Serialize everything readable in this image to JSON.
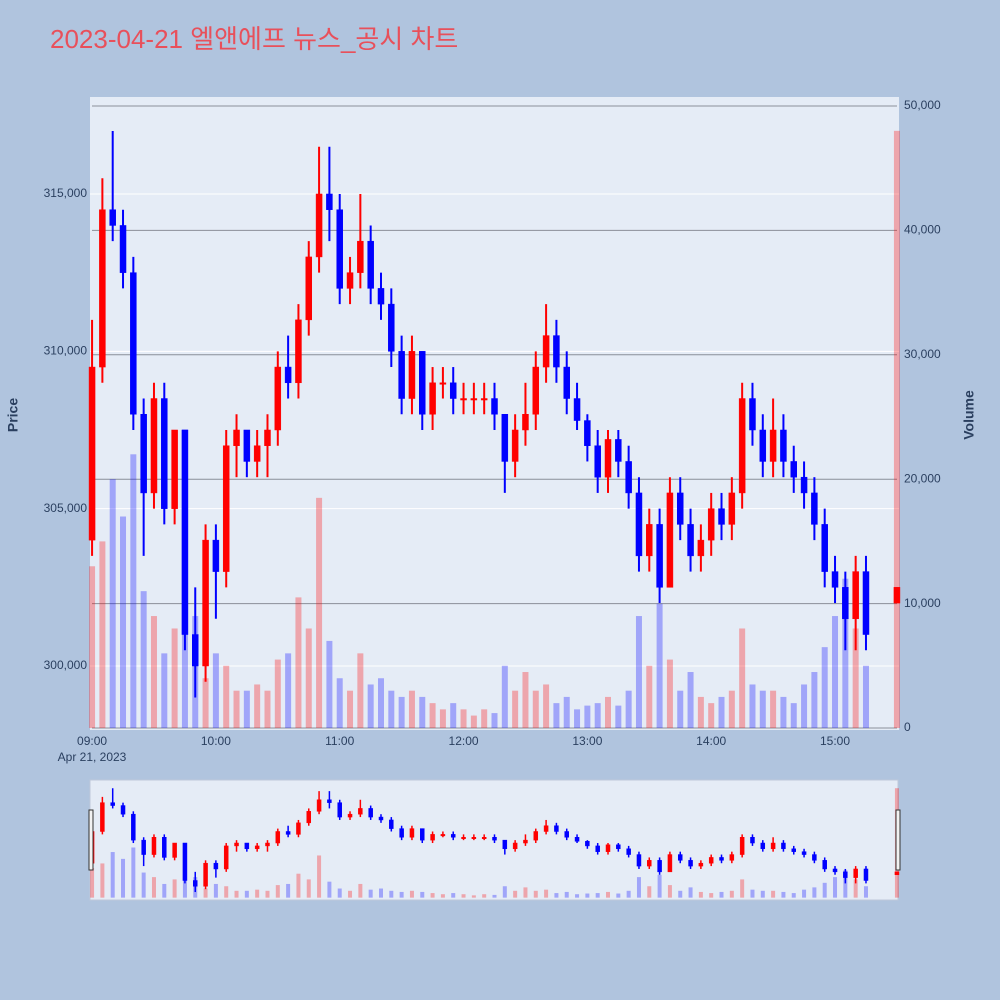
{
  "chart_data": {
    "type": "candlestick",
    "title": "2023-04-21 엘앤에프 뉴스_공시 차트",
    "y_label": "Price",
    "y2_label": "Volume",
    "x_date_label": "Apr 21, 2023",
    "increasing_color": "#ff0000",
    "decreasing_color": "#0000ff",
    "x": [
      "2023-04-21 09:00",
      "2023-04-21 09:05",
      "2023-04-21 09:10",
      "2023-04-21 09:15",
      "2023-04-21 09:20",
      "2023-04-21 09:25",
      "2023-04-21 09:30",
      "2023-04-21 09:35",
      "2023-04-21 09:40",
      "2023-04-21 09:45",
      "2023-04-21 09:50",
      "2023-04-21 09:55",
      "2023-04-21 10:00",
      "2023-04-21 10:05",
      "2023-04-21 10:10",
      "2023-04-21 10:15",
      "2023-04-21 10:20",
      "2023-04-21 10:25",
      "2023-04-21 10:30",
      "2023-04-21 10:35",
      "2023-04-21 10:40",
      "2023-04-21 10:45",
      "2023-04-21 10:50",
      "2023-04-21 10:55",
      "2023-04-21 11:00",
      "2023-04-21 11:05",
      "2023-04-21 11:10",
      "2023-04-21 11:15",
      "2023-04-21 11:20",
      "2023-04-21 11:25",
      "2023-04-21 11:30",
      "2023-04-21 11:35",
      "2023-04-21 11:40",
      "2023-04-21 11:45",
      "2023-04-21 11:50",
      "2023-04-21 11:55",
      "2023-04-21 12:00",
      "2023-04-21 12:05",
      "2023-04-21 12:10",
      "2023-04-21 12:15",
      "2023-04-21 12:20",
      "2023-04-21 12:25",
      "2023-04-21 12:30",
      "2023-04-21 12:35",
      "2023-04-21 12:40",
      "2023-04-21 12:45",
      "2023-04-21 12:50",
      "2023-04-21 12:55",
      "2023-04-21 13:00",
      "2023-04-21 13:05",
      "2023-04-21 13:10",
      "2023-04-21 13:15",
      "2023-04-21 13:20",
      "2023-04-21 13:25",
      "2023-04-21 13:30",
      "2023-04-21 13:35",
      "2023-04-21 13:40",
      "2023-04-21 13:45",
      "2023-04-21 13:50",
      "2023-04-21 13:55",
      "2023-04-21 14:00",
      "2023-04-21 14:05",
      "2023-04-21 14:10",
      "2023-04-21 14:15",
      "2023-04-21 14:20",
      "2023-04-21 14:25",
      "2023-04-21 14:30",
      "2023-04-21 14:35",
      "2023-04-21 14:40",
      "2023-04-21 14:45",
      "2023-04-21 14:50",
      "2023-04-21 14:55",
      "2023-04-21 15:00",
      "2023-04-21 15:05",
      "2023-04-21 15:10",
      "2023-04-21 15:15",
      "2023-04-21 15:30"
    ],
    "open": [
      304000,
      309500,
      314500,
      314000,
      312500,
      308000,
      305500,
      308500,
      305000,
      307500,
      301000,
      300000,
      304000,
      303000,
      307000,
      307500,
      306500,
      307000,
      307500,
      309500,
      309000,
      311000,
      313000,
      315000,
      314500,
      312000,
      312500,
      313500,
      312000,
      311500,
      310000,
      308500,
      310000,
      308000,
      309000,
      309000,
      308500,
      308500,
      308500,
      308500,
      308000,
      306500,
      307500,
      308000,
      309500,
      310500,
      309500,
      308500,
      307800,
      307000,
      306000,
      307200,
      306500,
      305500,
      303500,
      304500,
      302500,
      305500,
      304500,
      303500,
      304000,
      305000,
      304500,
      305500,
      308500,
      307500,
      306500,
      307500,
      306500,
      306000,
      305500,
      304500,
      303000,
      302500,
      301500,
      303000,
      302000
    ],
    "high": [
      311000,
      315500,
      317000,
      314500,
      313000,
      308500,
      309000,
      309000,
      307500,
      307500,
      302500,
      304500,
      304500,
      307500,
      308000,
      307500,
      307500,
      308000,
      310000,
      310500,
      311500,
      313500,
      316500,
      316500,
      315000,
      313000,
      315000,
      314000,
      312500,
      312000,
      310500,
      310500,
      310000,
      309500,
      309500,
      309500,
      309000,
      309000,
      309000,
      309000,
      308000,
      308000,
      309000,
      310000,
      311500,
      311000,
      310000,
      309000,
      308000,
      307500,
      307500,
      307500,
      307000,
      306000,
      305000,
      305000,
      306000,
      306000,
      305000,
      304500,
      305500,
      305500,
      306000,
      309000,
      309000,
      308000,
      308500,
      308000,
      307000,
      306500,
      306000,
      305000,
      303500,
      303000,
      303500,
      303500,
      302500
    ],
    "low": [
      303500,
      309000,
      313500,
      312000,
      307500,
      303500,
      305000,
      304500,
      304500,
      300500,
      299000,
      299500,
      301500,
      302500,
      306000,
      306000,
      306000,
      306000,
      307000,
      308500,
      308500,
      310500,
      312500,
      313500,
      311500,
      311500,
      312000,
      311500,
      311000,
      309500,
      308000,
      308000,
      307500,
      307500,
      308500,
      308000,
      308000,
      308000,
      308000,
      307500,
      305500,
      306000,
      307000,
      307500,
      309000,
      309000,
      308000,
      307500,
      306500,
      305500,
      305500,
      306000,
      305000,
      303000,
      303000,
      302000,
      302500,
      304000,
      303000,
      303000,
      303500,
      304000,
      304000,
      305000,
      307000,
      306000,
      306000,
      306000,
      305500,
      305000,
      304000,
      302500,
      302000,
      300500,
      300500,
      300500,
      302000
    ],
    "close": [
      309500,
      314500,
      314000,
      312500,
      308000,
      305500,
      308500,
      305000,
      307500,
      301000,
      300000,
      304000,
      303000,
      307000,
      307500,
      306500,
      307000,
      307500,
      309500,
      309000,
      311000,
      313000,
      315000,
      314500,
      312000,
      312500,
      313500,
      312000,
      311500,
      310000,
      308500,
      310000,
      308000,
      309000,
      309000,
      308500,
      308500,
      308500,
      308500,
      308000,
      306500,
      307500,
      308000,
      309500,
      310500,
      309500,
      308500,
      307800,
      307000,
      306000,
      307200,
      306500,
      305500,
      303500,
      304500,
      302500,
      305500,
      304500,
      303500,
      304000,
      305000,
      304500,
      305500,
      308500,
      307500,
      306500,
      307500,
      306500,
      306000,
      305500,
      304500,
      303000,
      302500,
      301500,
      303000,
      301000,
      302500
    ],
    "volume": [
      13000,
      15000,
      20000,
      17000,
      22000,
      11000,
      9000,
      6000,
      8000,
      24000,
      9000,
      4000,
      6000,
      5000,
      3000,
      3000,
      3500,
      3000,
      5500,
      6000,
      10500,
      8000,
      18500,
      7000,
      4000,
      3000,
      6000,
      3500,
      4000,
      3000,
      2500,
      3000,
      2500,
      2000,
      1500,
      2000,
      1500,
      1000,
      1500,
      1200,
      5000,
      3000,
      4500,
      3000,
      3500,
      2000,
      2500,
      1500,
      1800,
      2000,
      2500,
      1800,
      3000,
      9000,
      5000,
      10000,
      5500,
      3000,
      4500,
      2500,
      2000,
      2500,
      3000,
      8000,
      3500,
      3000,
      3000,
      2500,
      2000,
      3500,
      4500,
      6500,
      9000,
      12000,
      8000,
      5000,
      48000
    ],
    "xlim": [
      "2023-04-21 08:59",
      "2023-04-21 15:31"
    ],
    "xticks": [
      {
        "value": "2023-04-21 09:00",
        "label": "09:00"
      },
      {
        "value": "2023-04-21 10:00",
        "label": "10:00"
      },
      {
        "value": "2023-04-21 11:00",
        "label": "11:00"
      },
      {
        "value": "2023-04-21 12:00",
        "label": "12:00"
      },
      {
        "value": "2023-04-21 13:00",
        "label": "13:00"
      },
      {
        "value": "2023-04-21 14:00",
        "label": "14:00"
      },
      {
        "value": "2023-04-21 15:00",
        "label": "15:00"
      }
    ],
    "ylim": [
      297966,
      318082
    ],
    "yticks": [
      {
        "value": 300000,
        "label": "300,000"
      },
      {
        "value": 305000,
        "label": "305,000"
      },
      {
        "value": 310000,
        "label": "310,000"
      },
      {
        "value": 315000,
        "label": "315,000"
      }
    ],
    "y2lim": [
      -160,
      50720
    ],
    "y2ticks": [
      0,
      {
        "value": 10000,
        "label": "10,000"
      },
      {
        "value": 20000,
        "label": "20,000"
      },
      {
        "value": 30000,
        "label": "30,000"
      },
      {
        "value": 40000,
        "label": "40,000"
      },
      {
        "value": 50000,
        "label": "50,000"
      }
    ],
    "grid": true,
    "rangeslider": true
  }
}
